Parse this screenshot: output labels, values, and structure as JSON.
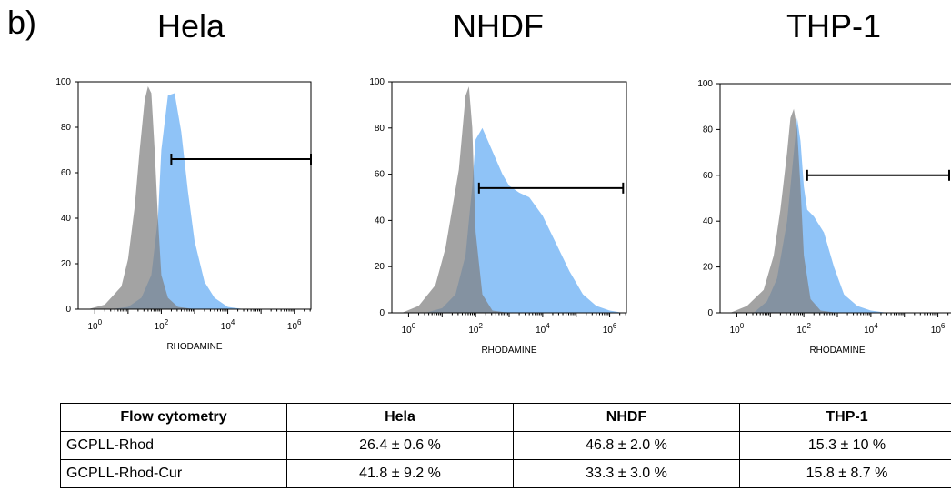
{
  "panel_label": "b)",
  "table": {
    "headers": [
      "Flow cytometry",
      "Hela",
      "NHDF",
      "THP-1"
    ],
    "rows": [
      [
        "GCPLL-Rhod",
        "26.4 ± 0.6 %",
        "46.8  ± 2.0 %",
        "15.3 ± 10 %"
      ],
      [
        "GCPLL-Rhod-Cur",
        "41.8 ± 9.2 %",
        "33.3  ± 3.0 %",
        "15.8 ± 8.7 %"
      ]
    ]
  },
  "chart_data": [
    {
      "type": "area",
      "title": "Hela",
      "xlabel": "RHODAMINE",
      "ylabel": "",
      "x_scale": "log",
      "xlim_log10": [
        -0.5,
        6.5
      ],
      "ylim": [
        0,
        100
      ],
      "x_tick_labels": [
        "10^0",
        "10^2",
        "10^4",
        "10^6"
      ],
      "y_tick_labels": [
        "0",
        "20",
        "40",
        "60",
        "80",
        "100"
      ],
      "colors": {
        "control": "#808080",
        "treated": "#8fc3f7"
      },
      "series": [
        {
          "log10_x": [
            -0.2,
            0.3,
            0.8,
            1.0,
            1.2,
            1.35,
            1.5,
            1.6,
            1.7,
            1.8,
            1.9,
            2.0,
            2.2,
            2.5,
            3.0,
            3.5,
            4.0
          ],
          "values": [
            0,
            2,
            10,
            22,
            45,
            70,
            92,
            98,
            95,
            70,
            40,
            15,
            5,
            1,
            0,
            0,
            0
          ]
        },
        {
          "log10_x": [
            -0.2,
            0.5,
            1.0,
            1.4,
            1.7,
            1.9,
            2.0,
            2.2,
            2.4,
            2.6,
            2.8,
            3.0,
            3.3,
            3.6,
            4.0,
            4.5,
            5.0
          ],
          "values": [
            0,
            0,
            1,
            5,
            15,
            40,
            70,
            94,
            95,
            78,
            52,
            30,
            12,
            5,
            1,
            0,
            0
          ]
        }
      ],
      "gate": {
        "log10_x": [
          2.3,
          6.5
        ],
        "y": 66
      }
    },
    {
      "type": "area",
      "title": "NHDF",
      "xlabel": "RHODAMINE",
      "ylabel": "",
      "x_scale": "log",
      "xlim_log10": [
        -0.5,
        6.5
      ],
      "ylim": [
        0,
        100
      ],
      "x_tick_labels": [
        "10^0",
        "10^2",
        "10^4",
        "10^6"
      ],
      "y_tick_labels": [
        "0",
        "20",
        "40",
        "60",
        "80",
        "100"
      ],
      "colors": {
        "control": "#808080",
        "treated": "#8fc3f7"
      },
      "series": [
        {
          "log10_x": [
            -0.2,
            0.3,
            0.8,
            1.1,
            1.3,
            1.5,
            1.6,
            1.7,
            1.8,
            1.9,
            2.0,
            2.2,
            2.5,
            3.0
          ],
          "values": [
            0,
            3,
            12,
            28,
            45,
            62,
            78,
            94,
            98,
            80,
            35,
            8,
            1,
            0
          ]
        },
        {
          "log10_x": [
            -0.2,
            0.5,
            1.0,
            1.4,
            1.7,
            1.9,
            2.0,
            2.2,
            2.5,
            2.8,
            3.0,
            3.3,
            3.6,
            4.0,
            4.4,
            4.8,
            5.2,
            5.6,
            6.0,
            6.4
          ],
          "values": [
            0,
            0,
            2,
            8,
            25,
            55,
            75,
            80,
            70,
            60,
            55,
            52,
            50,
            42,
            30,
            18,
            8,
            3,
            1,
            0
          ]
        }
      ],
      "gate": {
        "log10_x": [
          2.1,
          6.4
        ],
        "y": 54
      }
    },
    {
      "type": "area",
      "title": "THP-1",
      "xlabel": "RHODAMINE",
      "ylabel": "",
      "x_scale": "log",
      "xlim_log10": [
        -0.5,
        6.5
      ],
      "ylim": [
        0,
        100
      ],
      "x_tick_labels": [
        "10^0",
        "10^2",
        "10^4",
        "10^6"
      ],
      "y_tick_labels": [
        "0",
        "20",
        "40",
        "60",
        "80",
        "100"
      ],
      "colors": {
        "control": "#808080",
        "treated": "#8fc3f7"
      },
      "series": [
        {
          "log10_x": [
            -0.2,
            0.3,
            0.8,
            1.1,
            1.3,
            1.5,
            1.6,
            1.7,
            1.8,
            1.9,
            2.0,
            2.2,
            2.5,
            3.0
          ],
          "values": [
            0,
            3,
            10,
            25,
            45,
            70,
            85,
            89,
            80,
            55,
            25,
            6,
            1,
            0
          ]
        },
        {
          "log10_x": [
            -0.2,
            0.5,
            0.9,
            1.2,
            1.5,
            1.7,
            1.8,
            1.9,
            2.0,
            2.1,
            2.3,
            2.6,
            2.9,
            3.2,
            3.6,
            4.0,
            4.5
          ],
          "values": [
            0,
            0,
            5,
            15,
            40,
            70,
            85,
            75,
            55,
            45,
            42,
            35,
            20,
            8,
            3,
            1,
            0
          ]
        }
      ],
      "gate": {
        "log10_x": [
          2.1,
          6.5
        ],
        "y": 60
      }
    }
  ]
}
